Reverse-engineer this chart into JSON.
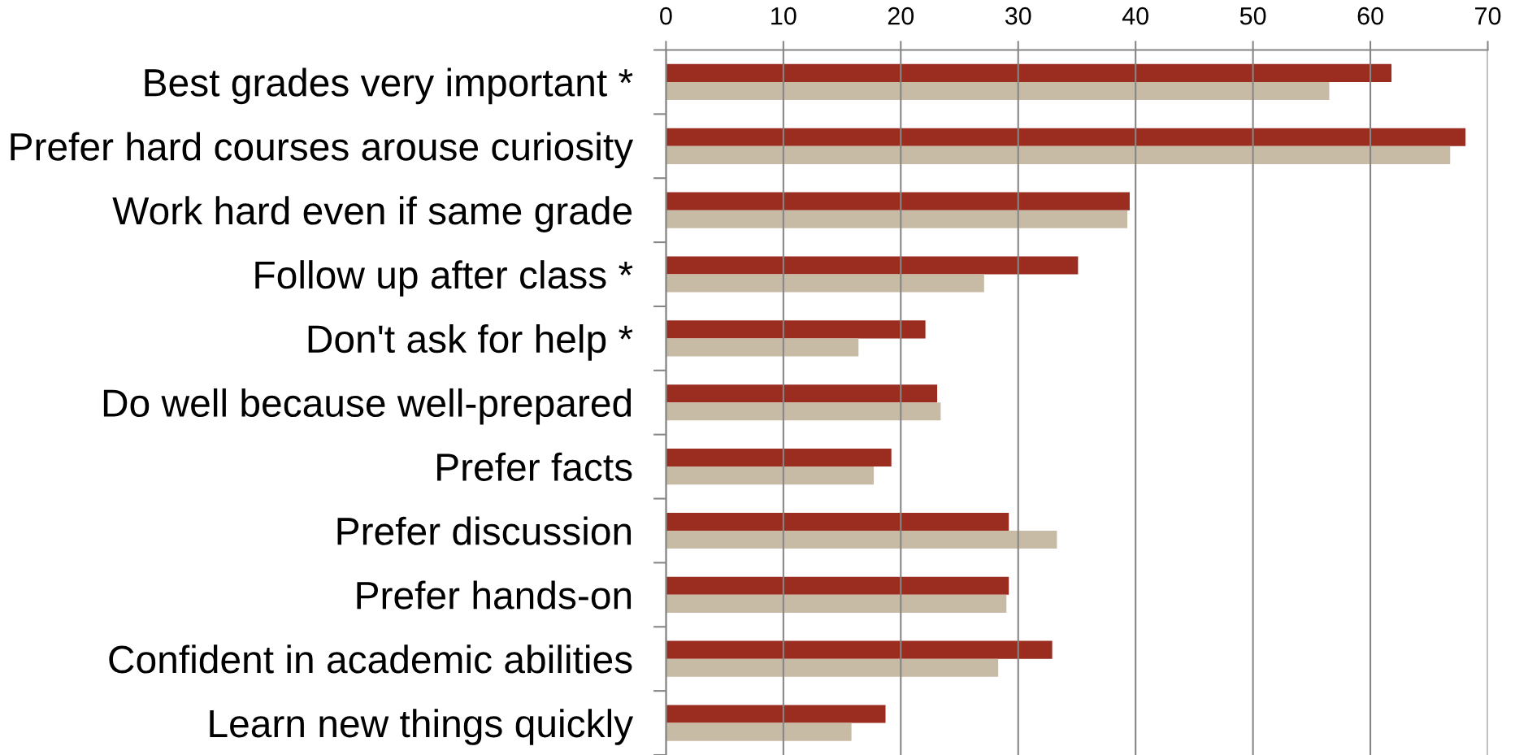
{
  "chart_data": {
    "type": "bar",
    "orientation": "horizontal",
    "categories": [
      "Best grades very important *",
      "Prefer hard courses arouse curiosity",
      "Work hard even if same grade",
      "Follow up after class *",
      "Don't ask for help *",
      "Do well because well-prepared",
      "Prefer facts",
      "Prefer discussion",
      "Prefer hands-on",
      "Confident in academic abilities",
      "Learn new things quickly"
    ],
    "series": [
      {
        "color": "#9b2d20",
        "values": [
          61.8,
          68.1,
          39.5,
          35.1,
          22.1,
          23.1,
          19.2,
          29.2,
          29.2,
          32.9,
          18.7
        ]
      },
      {
        "color": "#c8bba6",
        "values": [
          56.5,
          66.8,
          39.3,
          27.1,
          16.4,
          23.4,
          17.7,
          33.3,
          29.0,
          28.3,
          15.8
        ]
      }
    ],
    "xlim": [
      0,
      70
    ],
    "xticks": [
      0,
      10,
      20,
      30,
      40,
      50,
      60,
      70
    ],
    "grid": "x"
  }
}
